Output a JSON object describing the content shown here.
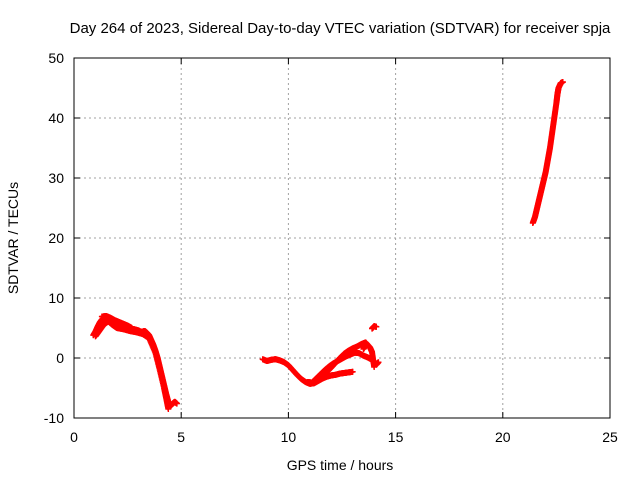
{
  "chart_data": {
    "type": "scatter",
    "title": "Day 264 of 2023, Sidereal Day-to-day VTEC variation (SDTVAR) for receiver spja",
    "xlabel": "GPS time / hours",
    "ylabel": "SDTVAR / TECUs",
    "xlim": [
      0,
      25
    ],
    "ylim": [
      -10,
      50
    ],
    "xticks": [
      0,
      5,
      10,
      15,
      20,
      25
    ],
    "yticks": [
      -10,
      0,
      10,
      20,
      30,
      40,
      50
    ],
    "xtick_labels": [
      "0",
      "5",
      "10",
      "15",
      "20",
      "25"
    ],
    "ytick_labels": [
      "-10",
      "0",
      "10",
      "20",
      "30",
      "40",
      "50"
    ],
    "grid": true,
    "marker": "+",
    "color": "#ff0000",
    "series": [
      {
        "name": "SDTVAR",
        "segments": [
          [
            [
              0.9,
              3.8
            ],
            [
              1.0,
              4.4
            ],
            [
              1.1,
              5.2
            ],
            [
              1.2,
              5.9
            ],
            [
              1.3,
              6.4
            ],
            [
              1.4,
              6.7
            ],
            [
              1.5,
              6.6
            ],
            [
              1.6,
              6.3
            ],
            [
              1.7,
              6.0
            ],
            [
              1.8,
              5.8
            ],
            [
              1.9,
              5.7
            ],
            [
              2.0,
              5.5
            ],
            [
              2.1,
              5.3
            ],
            [
              2.2,
              5.2
            ],
            [
              2.4,
              5.1
            ],
            [
              2.6,
              4.9
            ],
            [
              2.8,
              4.8
            ],
            [
              3.0,
              4.6
            ],
            [
              3.1,
              4.4
            ],
            [
              3.2,
              4.4
            ],
            [
              3.3,
              4.5
            ],
            [
              3.4,
              4.2
            ],
            [
              3.5,
              3.8
            ],
            [
              3.6,
              3.0
            ],
            [
              3.7,
              2.2
            ],
            [
              3.8,
              1.2
            ],
            [
              3.9,
              0.0
            ],
            [
              4.0,
              -1.5
            ],
            [
              4.1,
              -3.0
            ],
            [
              4.2,
              -4.5
            ],
            [
              4.3,
              -6.0
            ],
            [
              4.4,
              -7.3
            ],
            [
              4.5,
              -8.0
            ],
            [
              4.6,
              -7.6
            ],
            [
              4.7,
              -7.3
            ],
            [
              4.8,
              -7.6
            ]
          ],
          [
            [
              1.0,
              3.6
            ],
            [
              1.2,
              4.6
            ],
            [
              1.4,
              5.6
            ],
            [
              1.6,
              6.1
            ],
            [
              1.8,
              5.5
            ],
            [
              2.0,
              5.0
            ],
            [
              2.3,
              4.8
            ],
            [
              2.6,
              4.5
            ],
            [
              2.9,
              4.3
            ],
            [
              3.2,
              4.0
            ],
            [
              3.5,
              3.3
            ],
            [
              3.8,
              0.8
            ],
            [
              4.0,
              -2.0
            ],
            [
              4.2,
              -5.0
            ],
            [
              4.3,
              -6.7
            ],
            [
              4.4,
              -8.5
            ]
          ],
          [
            [
              1.3,
              6.9
            ],
            [
              1.5,
              7.0
            ],
            [
              1.7,
              6.7
            ],
            [
              1.9,
              6.3
            ],
            [
              2.1,
              6.0
            ],
            [
              2.3,
              5.7
            ],
            [
              2.5,
              5.4
            ],
            [
              2.7,
              5.0
            ]
          ],
          [
            [
              8.8,
              -0.2
            ],
            [
              9.0,
              -0.5
            ],
            [
              9.2,
              -0.3
            ],
            [
              9.4,
              -0.2
            ],
            [
              9.6,
              -0.4
            ],
            [
              9.8,
              -0.7
            ],
            [
              10.0,
              -1.2
            ],
            [
              10.2,
              -2.0
            ],
            [
              10.4,
              -2.8
            ],
            [
              10.6,
              -3.5
            ],
            [
              10.8,
              -4.0
            ],
            [
              11.0,
              -4.3
            ],
            [
              11.2,
              -4.2
            ],
            [
              11.4,
              -3.8
            ],
            [
              11.6,
              -3.4
            ],
            [
              11.8,
              -3.1
            ],
            [
              12.0,
              -2.9
            ],
            [
              12.2,
              -2.8
            ],
            [
              12.4,
              -2.6
            ],
            [
              12.6,
              -2.5
            ],
            [
              12.8,
              -2.4
            ],
            [
              13.0,
              -2.3
            ]
          ],
          [
            [
              10.9,
              -4.0
            ],
            [
              11.1,
              -4.1
            ],
            [
              11.3,
              -3.4
            ],
            [
              11.5,
              -2.7
            ],
            [
              11.7,
              -2.0
            ],
            [
              11.9,
              -1.4
            ],
            [
              12.1,
              -0.9
            ],
            [
              12.3,
              -0.5
            ],
            [
              12.5,
              -0.1
            ],
            [
              12.7,
              0.3
            ],
            [
              12.9,
              0.6
            ],
            [
              13.1,
              0.9
            ],
            [
              13.3,
              0.8
            ],
            [
              13.5,
              0.4
            ],
            [
              13.7,
              0.1
            ],
            [
              13.9,
              -0.3
            ],
            [
              14.0,
              -0.6
            ],
            [
              14.1,
              -1.1
            ],
            [
              14.2,
              -0.7
            ]
          ],
          [
            [
              11.6,
              -3.0
            ],
            [
              11.8,
              -2.3
            ],
            [
              12.0,
              -1.6
            ],
            [
              12.2,
              -0.8
            ],
            [
              12.4,
              0.0
            ],
            [
              12.6,
              0.7
            ],
            [
              12.8,
              1.2
            ],
            [
              13.0,
              1.6
            ],
            [
              13.2,
              1.9
            ],
            [
              13.4,
              2.3
            ],
            [
              13.6,
              2.6
            ],
            [
              13.8,
              1.8
            ],
            [
              13.9,
              1.0
            ],
            [
              14.0,
              -1.5
            ]
          ],
          [
            [
              13.5,
              1.5
            ],
            [
              13.6,
              2.1
            ]
          ],
          [
            [
              13.9,
              4.9
            ],
            [
              14.0,
              5.3
            ],
            [
              14.1,
              5.2
            ]
          ],
          [
            [
              21.4,
              22.5
            ],
            [
              21.5,
              23.5
            ],
            [
              21.6,
              25.0
            ],
            [
              21.7,
              26.5
            ],
            [
              21.8,
              28.0
            ],
            [
              21.9,
              29.5
            ],
            [
              22.0,
              31.0
            ],
            [
              22.1,
              33.0
            ],
            [
              22.2,
              35.0
            ],
            [
              22.3,
              37.5
            ],
            [
              22.4,
              40.0
            ],
            [
              22.5,
              42.5
            ],
            [
              22.55,
              44.0
            ],
            [
              22.6,
              45.0
            ],
            [
              22.7,
              45.8
            ],
            [
              22.8,
              46.0
            ]
          ]
        ]
      }
    ]
  }
}
